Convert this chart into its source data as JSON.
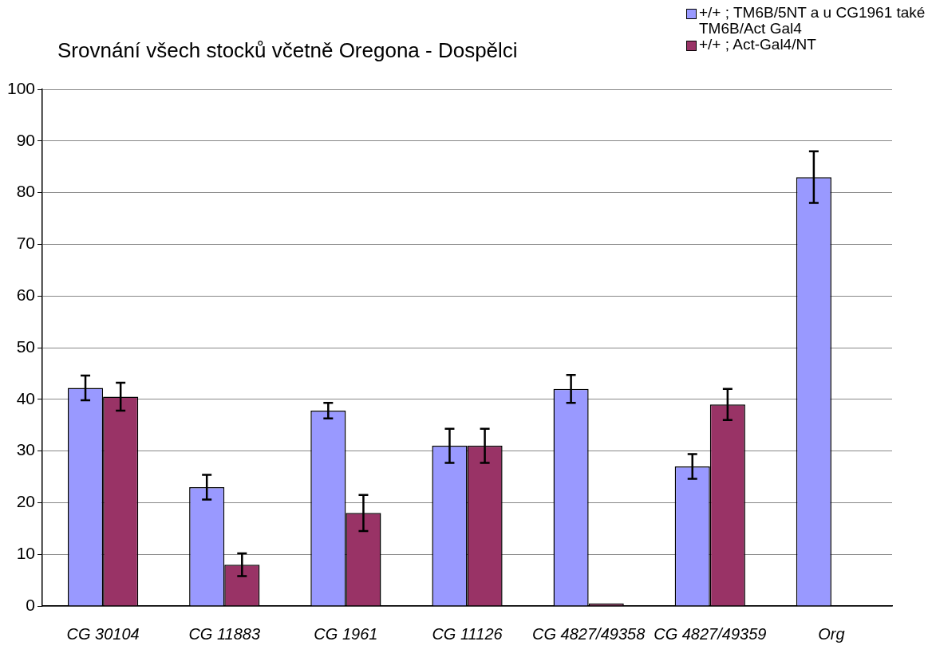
{
  "chart_data": {
    "type": "bar",
    "title": "Srovnání všech stocků včetně Oregona - Dospělci",
    "categories": [
      "CG 30104",
      "CG 11883",
      "CG 1961",
      "CG 11126",
      "CG 4827/49358",
      "CG 4827/49359",
      "Org"
    ],
    "series": [
      {
        "name": "+/+ ; TM6B/5NT a u CG1961 také TM6B/Act Gal4",
        "color": "#9999ff",
        "values": [
          42.2,
          23,
          37.8,
          31,
          42,
          27,
          83
        ],
        "errors": [
          2.4,
          2.4,
          1.5,
          3.3,
          2.7,
          2.4,
          5
        ]
      },
      {
        "name": "+/+ ; Act-Gal4/NT",
        "color": "#993366",
        "values": [
          40.5,
          8,
          18,
          31,
          0.5,
          39,
          null
        ],
        "errors": [
          2.7,
          2.2,
          3.5,
          3.3,
          null,
          3,
          null
        ]
      }
    ],
    "ylim": [
      0,
      100
    ],
    "yticks": [
      0,
      10,
      20,
      30,
      40,
      50,
      60,
      70,
      80,
      90,
      100
    ],
    "grid": "y",
    "legend": "top right"
  }
}
